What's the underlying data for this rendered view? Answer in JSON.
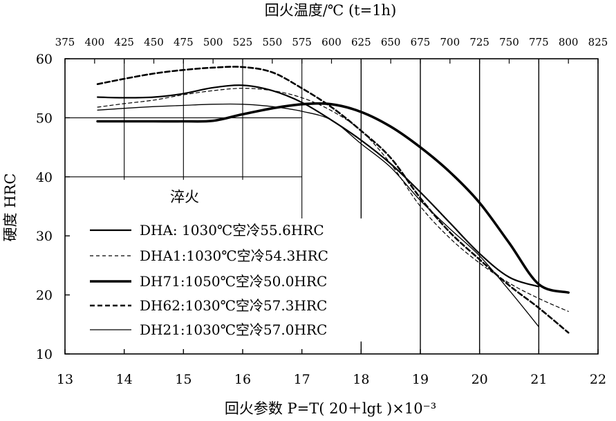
{
  "chart_data": {
    "type": "line",
    "title": "",
    "xlabel": "回火参数 P=T( 20＋lgt )×10⁻³",
    "ylabel": "硬度 HRC",
    "x2label": "回火温度/℃ (t=1h)",
    "xlim": [
      13,
      22
    ],
    "ylim": [
      10,
      60
    ],
    "x_ticks": [
      "13",
      "14",
      "15",
      "16",
      "17",
      "18",
      "19",
      "20",
      "21",
      "22"
    ],
    "y_ticks": [
      "10",
      "20",
      "30",
      "40",
      "50",
      "60"
    ],
    "x2_ticks": [
      "375",
      "400",
      "425",
      "450",
      "475",
      "500",
      "525",
      "550",
      "575",
      "600",
      "625",
      "650",
      "675",
      "700",
      "725",
      "750",
      "775",
      "800",
      "825"
    ],
    "grid": "vertical lines only, P > 17 region",
    "annotation": "淬火",
    "legend_position": "lower-left",
    "series": [
      {
        "name": "DHA: 1030℃空冷55.6HRC",
        "style": "solid-medium",
        "x": [
          13.55,
          14.0,
          14.5,
          15.0,
          15.5,
          16.0,
          16.5,
          17.0,
          17.5,
          18.0,
          18.5,
          19.0,
          19.5,
          20.0,
          20.5,
          21.0
        ],
        "y": [
          53.5,
          53.4,
          53.5,
          54.1,
          55.1,
          55.5,
          54.6,
          52.6,
          49.6,
          46.2,
          42.2,
          37.4,
          32.2,
          27.0,
          23.0,
          21.4
        ]
      },
      {
        "name": "DHA1:1030℃空冷54.3HRC",
        "style": "dashed-thin",
        "x": [
          13.55,
          14.0,
          14.5,
          15.0,
          15.5,
          16.0,
          16.5,
          17.0,
          17.5,
          18.0,
          18.5,
          19.0,
          19.5,
          20.0,
          20.5,
          21.0,
          21.5
        ],
        "y": [
          51.8,
          52.4,
          53.0,
          53.9,
          54.6,
          55.0,
          54.6,
          53.4,
          51.2,
          47.8,
          42.2,
          35.0,
          29.6,
          25.4,
          22.0,
          19.4,
          17.2
        ]
      },
      {
        "name": "DH71:1050℃空冷50.0HRC",
        "style": "solid-thick",
        "x": [
          13.55,
          14.0,
          14.5,
          15.0,
          15.5,
          16.0,
          16.5,
          17.0,
          17.5,
          18.0,
          18.5,
          19.0,
          19.5,
          20.0,
          20.5,
          21.0,
          21.5
        ],
        "y": [
          49.4,
          49.4,
          49.4,
          49.4,
          49.5,
          50.6,
          51.6,
          52.3,
          52.3,
          51.0,
          48.5,
          45.0,
          40.8,
          35.6,
          28.8,
          21.8,
          20.4
        ]
      },
      {
        "name": "DH62:1030℃空冷57.3HRC",
        "style": "dashed-thick",
        "x": [
          13.55,
          14.0,
          14.5,
          15.0,
          15.5,
          16.0,
          16.5,
          17.0,
          17.5,
          18.0,
          18.5,
          19.0,
          19.5,
          20.0,
          20.5,
          21.0,
          21.5
        ],
        "y": [
          55.7,
          56.6,
          57.5,
          58.1,
          58.5,
          58.6,
          57.7,
          55.0,
          51.8,
          47.8,
          43.2,
          36.4,
          30.6,
          26.0,
          21.6,
          17.8,
          13.6
        ]
      },
      {
        "name": "DH21:1030℃空冷57.0HRC",
        "style": "solid-thin",
        "x": [
          13.55,
          14.0,
          14.5,
          15.0,
          15.5,
          16.0,
          16.5,
          17.0,
          17.5,
          18.0,
          18.5,
          19.0,
          19.5,
          20.0,
          20.5,
          21.0
        ],
        "y": [
          51.3,
          51.6,
          51.9,
          52.1,
          52.3,
          52.3,
          51.9,
          51.1,
          49.6,
          45.6,
          41.6,
          36.0,
          31.2,
          26.6,
          20.8,
          14.6
        ]
      }
    ]
  }
}
